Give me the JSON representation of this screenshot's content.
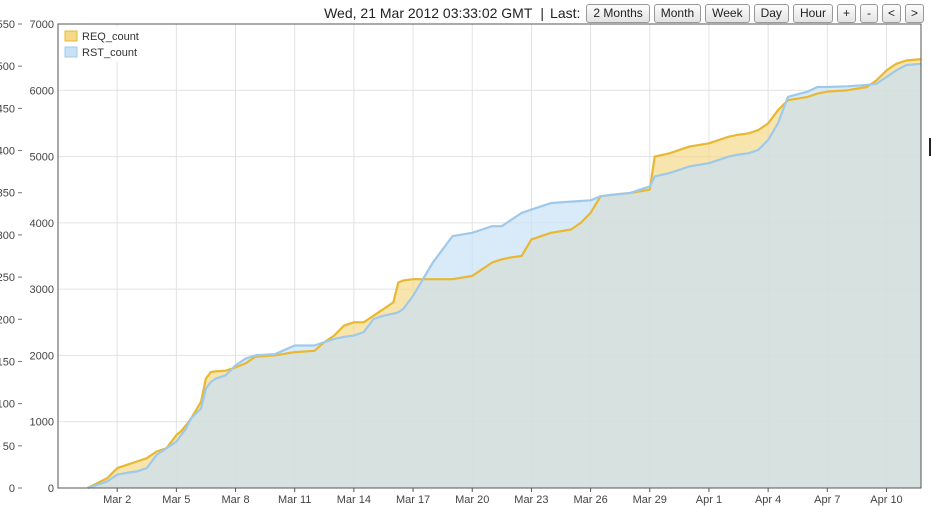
{
  "header": {
    "timestamp": "Wed, 21 Mar 2012 03:33:02 GMT",
    "range_label": "Last:",
    "buttons": {
      "two_months": "2 Months",
      "month": "Month",
      "week": "Week",
      "day": "Day",
      "hour": "Hour",
      "zoom_in": "+",
      "zoom_out": "-",
      "prev": "<",
      "next": ">"
    }
  },
  "chart_data": {
    "type": "area",
    "title": "",
    "xlabel": "",
    "ylabel": "",
    "xlim": [
      "2012-02-28",
      "2012-04-11 18:00"
    ],
    "ylim": [
      0,
      7000
    ],
    "ylim_secondary": [
      0,
      550
    ],
    "grid": true,
    "legend_position": "top-left",
    "x_ticks": [
      {
        "date": "2012-03-02",
        "label": "Mar 2"
      },
      {
        "date": "2012-03-05",
        "label": "Mar 5"
      },
      {
        "date": "2012-03-08",
        "label": "Mar 8"
      },
      {
        "date": "2012-03-11",
        "label": "Mar 11"
      },
      {
        "date": "2012-03-14",
        "label": "Mar 14"
      },
      {
        "date": "2012-03-17",
        "label": "Mar 17"
      },
      {
        "date": "2012-03-20",
        "label": "Mar 20"
      },
      {
        "date": "2012-03-23",
        "label": "Mar 23"
      },
      {
        "date": "2012-03-26",
        "label": "Mar 26"
      },
      {
        "date": "2012-03-29",
        "label": "Mar 29"
      },
      {
        "date": "2012-04-01",
        "label": "Apr 1"
      },
      {
        "date": "2012-04-04",
        "label": "Apr 4"
      },
      {
        "date": "2012-04-07",
        "label": "Apr 7"
      },
      {
        "date": "2012-04-10",
        "label": "Apr 10"
      }
    ],
    "y_ticks": [
      {
        "value": 0,
        "label": "0"
      },
      {
        "value": 1000,
        "label": "1000"
      },
      {
        "value": 2000,
        "label": "2000"
      },
      {
        "value": 3000,
        "label": "3000"
      },
      {
        "value": 4000,
        "label": "4000"
      },
      {
        "value": 5000,
        "label": "5000"
      },
      {
        "value": 6000,
        "label": "6000"
      },
      {
        "value": 7000,
        "label": "7000"
      }
    ],
    "y2_ticks": [
      {
        "value": 0,
        "label": "0"
      },
      {
        "value": 50,
        "label": "50"
      },
      {
        "value": 100,
        "label": "100"
      },
      {
        "value": 150,
        "label": "150"
      },
      {
        "value": 200,
        "label": "200"
      },
      {
        "value": 250,
        "label": "250"
      },
      {
        "value": 300,
        "label": "300"
      },
      {
        "value": 350,
        "label": "350"
      },
      {
        "value": 400,
        "label": "400"
      },
      {
        "value": 450,
        "label": "450"
      },
      {
        "value": 500,
        "label": "500"
      },
      {
        "value": 550,
        "label": "550"
      }
    ],
    "series": [
      {
        "name": "REQ_count",
        "color": "#e8b830",
        "fill": "#f5d98a",
        "points": [
          [
            "2012-02-29 12:00",
            0
          ],
          [
            "2012-03-01 12:00",
            150
          ],
          [
            "2012-03-02",
            300
          ],
          [
            "2012-03-02 12:00",
            350
          ],
          [
            "2012-03-03",
            400
          ],
          [
            "2012-03-03 12:00",
            450
          ],
          [
            "2012-03-04",
            550
          ],
          [
            "2012-03-04 12:00",
            600
          ],
          [
            "2012-03-05",
            800
          ],
          [
            "2012-03-05 06:00",
            860
          ],
          [
            "2012-03-05 12:00",
            950
          ],
          [
            "2012-03-05 18:00",
            1050
          ],
          [
            "2012-03-06 06:00",
            1300
          ],
          [
            "2012-03-06 12:00",
            1650
          ],
          [
            "2012-03-06 18:00",
            1750
          ],
          [
            "2012-03-07",
            1760
          ],
          [
            "2012-03-07 12:00",
            1770
          ],
          [
            "2012-03-08",
            1820
          ],
          [
            "2012-03-08 12:00",
            1880
          ],
          [
            "2012-03-09",
            1980
          ],
          [
            "2012-03-10",
            2000
          ],
          [
            "2012-03-11",
            2050
          ],
          [
            "2012-03-12",
            2070
          ],
          [
            "2012-03-12 12:00",
            2200
          ],
          [
            "2012-03-13",
            2300
          ],
          [
            "2012-03-13 12:00",
            2450
          ],
          [
            "2012-03-14",
            2500
          ],
          [
            "2012-03-14 12:00",
            2500
          ],
          [
            "2012-03-15",
            2600
          ],
          [
            "2012-03-15 12:00",
            2700
          ],
          [
            "2012-03-16",
            2800
          ],
          [
            "2012-03-16 06:00",
            3100
          ],
          [
            "2012-03-16 12:00",
            3130
          ],
          [
            "2012-03-17",
            3150
          ],
          [
            "2012-03-18",
            3150
          ],
          [
            "2012-03-19",
            3150
          ],
          [
            "2012-03-20",
            3200
          ],
          [
            "2012-03-20 12:00",
            3300
          ],
          [
            "2012-03-21",
            3400
          ],
          [
            "2012-03-21 12:00",
            3450
          ],
          [
            "2012-03-22",
            3480
          ],
          [
            "2012-03-22 12:00",
            3500
          ],
          [
            "2012-03-23",
            3750
          ],
          [
            "2012-03-23 12:00",
            3800
          ],
          [
            "2012-03-24",
            3850
          ],
          [
            "2012-03-25",
            3900
          ],
          [
            "2012-03-25 12:00",
            4000
          ],
          [
            "2012-03-26",
            4150
          ],
          [
            "2012-03-26 12:00",
            4400
          ],
          [
            "2012-03-27",
            4420
          ],
          [
            "2012-03-28",
            4450
          ],
          [
            "2012-03-29",
            4500
          ],
          [
            "2012-03-29 06:00",
            5000
          ],
          [
            "2012-03-30",
            5050
          ],
          [
            "2012-03-30 12:00",
            5100
          ],
          [
            "2012-03-31",
            5150
          ],
          [
            "2012-04-01",
            5200
          ],
          [
            "2012-04-01 12:00",
            5250
          ],
          [
            "2012-04-02",
            5300
          ],
          [
            "2012-04-02 12:00",
            5330
          ],
          [
            "2012-04-03",
            5350
          ],
          [
            "2012-04-03 12:00",
            5400
          ],
          [
            "2012-04-04",
            5500
          ],
          [
            "2012-04-04 12:00",
            5700
          ],
          [
            "2012-04-05",
            5850
          ],
          [
            "2012-04-06",
            5900
          ],
          [
            "2012-04-06 12:00",
            5950
          ],
          [
            "2012-04-07",
            5980
          ],
          [
            "2012-04-08",
            6000
          ],
          [
            "2012-04-09",
            6050
          ],
          [
            "2012-04-09 12:00",
            6150
          ],
          [
            "2012-04-10",
            6300
          ],
          [
            "2012-04-10 12:00",
            6400
          ],
          [
            "2012-04-11",
            6450
          ],
          [
            "2012-04-11 18:00",
            6470
          ]
        ]
      },
      {
        "name": "RST_count",
        "color": "#9fc9ea",
        "fill": "#c9e1f5",
        "points": [
          [
            "2012-02-29 12:00",
            0
          ],
          [
            "2012-03-01 12:00",
            100
          ],
          [
            "2012-03-02",
            200
          ],
          [
            "2012-03-02 12:00",
            230
          ],
          [
            "2012-03-03",
            250
          ],
          [
            "2012-03-03 12:00",
            300
          ],
          [
            "2012-03-04",
            500
          ],
          [
            "2012-03-04 12:00",
            600
          ],
          [
            "2012-03-05",
            700
          ],
          [
            "2012-03-05 06:00",
            800
          ],
          [
            "2012-03-05 12:00",
            900
          ],
          [
            "2012-03-05 18:00",
            1050
          ],
          [
            "2012-03-06 06:00",
            1200
          ],
          [
            "2012-03-06 12:00",
            1500
          ],
          [
            "2012-03-06 18:00",
            1600
          ],
          [
            "2012-03-07",
            1650
          ],
          [
            "2012-03-07 12:00",
            1700
          ],
          [
            "2012-03-08",
            1850
          ],
          [
            "2012-03-08 12:00",
            1950
          ],
          [
            "2012-03-09",
            2000
          ],
          [
            "2012-03-10",
            2020
          ],
          [
            "2012-03-11",
            2150
          ],
          [
            "2012-03-12",
            2150
          ],
          [
            "2012-03-12 12:00",
            2200
          ],
          [
            "2012-03-13",
            2250
          ],
          [
            "2012-03-13 12:00",
            2280
          ],
          [
            "2012-03-14",
            2300
          ],
          [
            "2012-03-14 12:00",
            2350
          ],
          [
            "2012-03-15",
            2550
          ],
          [
            "2012-03-15 12:00",
            2600
          ],
          [
            "2012-03-16",
            2630
          ],
          [
            "2012-03-16 06:00",
            2650
          ],
          [
            "2012-03-16 12:00",
            2700
          ],
          [
            "2012-03-17",
            2900
          ],
          [
            "2012-03-18",
            3400
          ],
          [
            "2012-03-19",
            3800
          ],
          [
            "2012-03-20",
            3850
          ],
          [
            "2012-03-20 12:00",
            3900
          ],
          [
            "2012-03-21",
            3950
          ],
          [
            "2012-03-21 12:00",
            3950
          ],
          [
            "2012-03-22",
            4050
          ],
          [
            "2012-03-22 12:00",
            4150
          ],
          [
            "2012-03-23",
            4200
          ],
          [
            "2012-03-23 12:00",
            4250
          ],
          [
            "2012-03-24",
            4300
          ],
          [
            "2012-03-25",
            4320
          ],
          [
            "2012-03-25 12:00",
            4330
          ],
          [
            "2012-03-26",
            4340
          ],
          [
            "2012-03-26 12:00",
            4400
          ],
          [
            "2012-03-27",
            4420
          ],
          [
            "2012-03-28",
            4450
          ],
          [
            "2012-03-29",
            4550
          ],
          [
            "2012-03-29 06:00",
            4700
          ],
          [
            "2012-03-30",
            4750
          ],
          [
            "2012-03-30 12:00",
            4800
          ],
          [
            "2012-03-31",
            4850
          ],
          [
            "2012-04-01",
            4900
          ],
          [
            "2012-04-01 12:00",
            4950
          ],
          [
            "2012-04-02",
            5000
          ],
          [
            "2012-04-02 12:00",
            5030
          ],
          [
            "2012-04-03",
            5050
          ],
          [
            "2012-04-03 12:00",
            5100
          ],
          [
            "2012-04-04",
            5250
          ],
          [
            "2012-04-04 12:00",
            5500
          ],
          [
            "2012-04-05",
            5900
          ],
          [
            "2012-04-06",
            5980
          ],
          [
            "2012-04-06 12:00",
            6050
          ],
          [
            "2012-04-07",
            6050
          ],
          [
            "2012-04-08",
            6060
          ],
          [
            "2012-04-09",
            6080
          ],
          [
            "2012-04-09 12:00",
            6100
          ],
          [
            "2012-04-10",
            6200
          ],
          [
            "2012-04-10 12:00",
            6300
          ],
          [
            "2012-04-11",
            6380
          ],
          [
            "2012-04-11 18:00",
            6400
          ]
        ]
      }
    ]
  }
}
